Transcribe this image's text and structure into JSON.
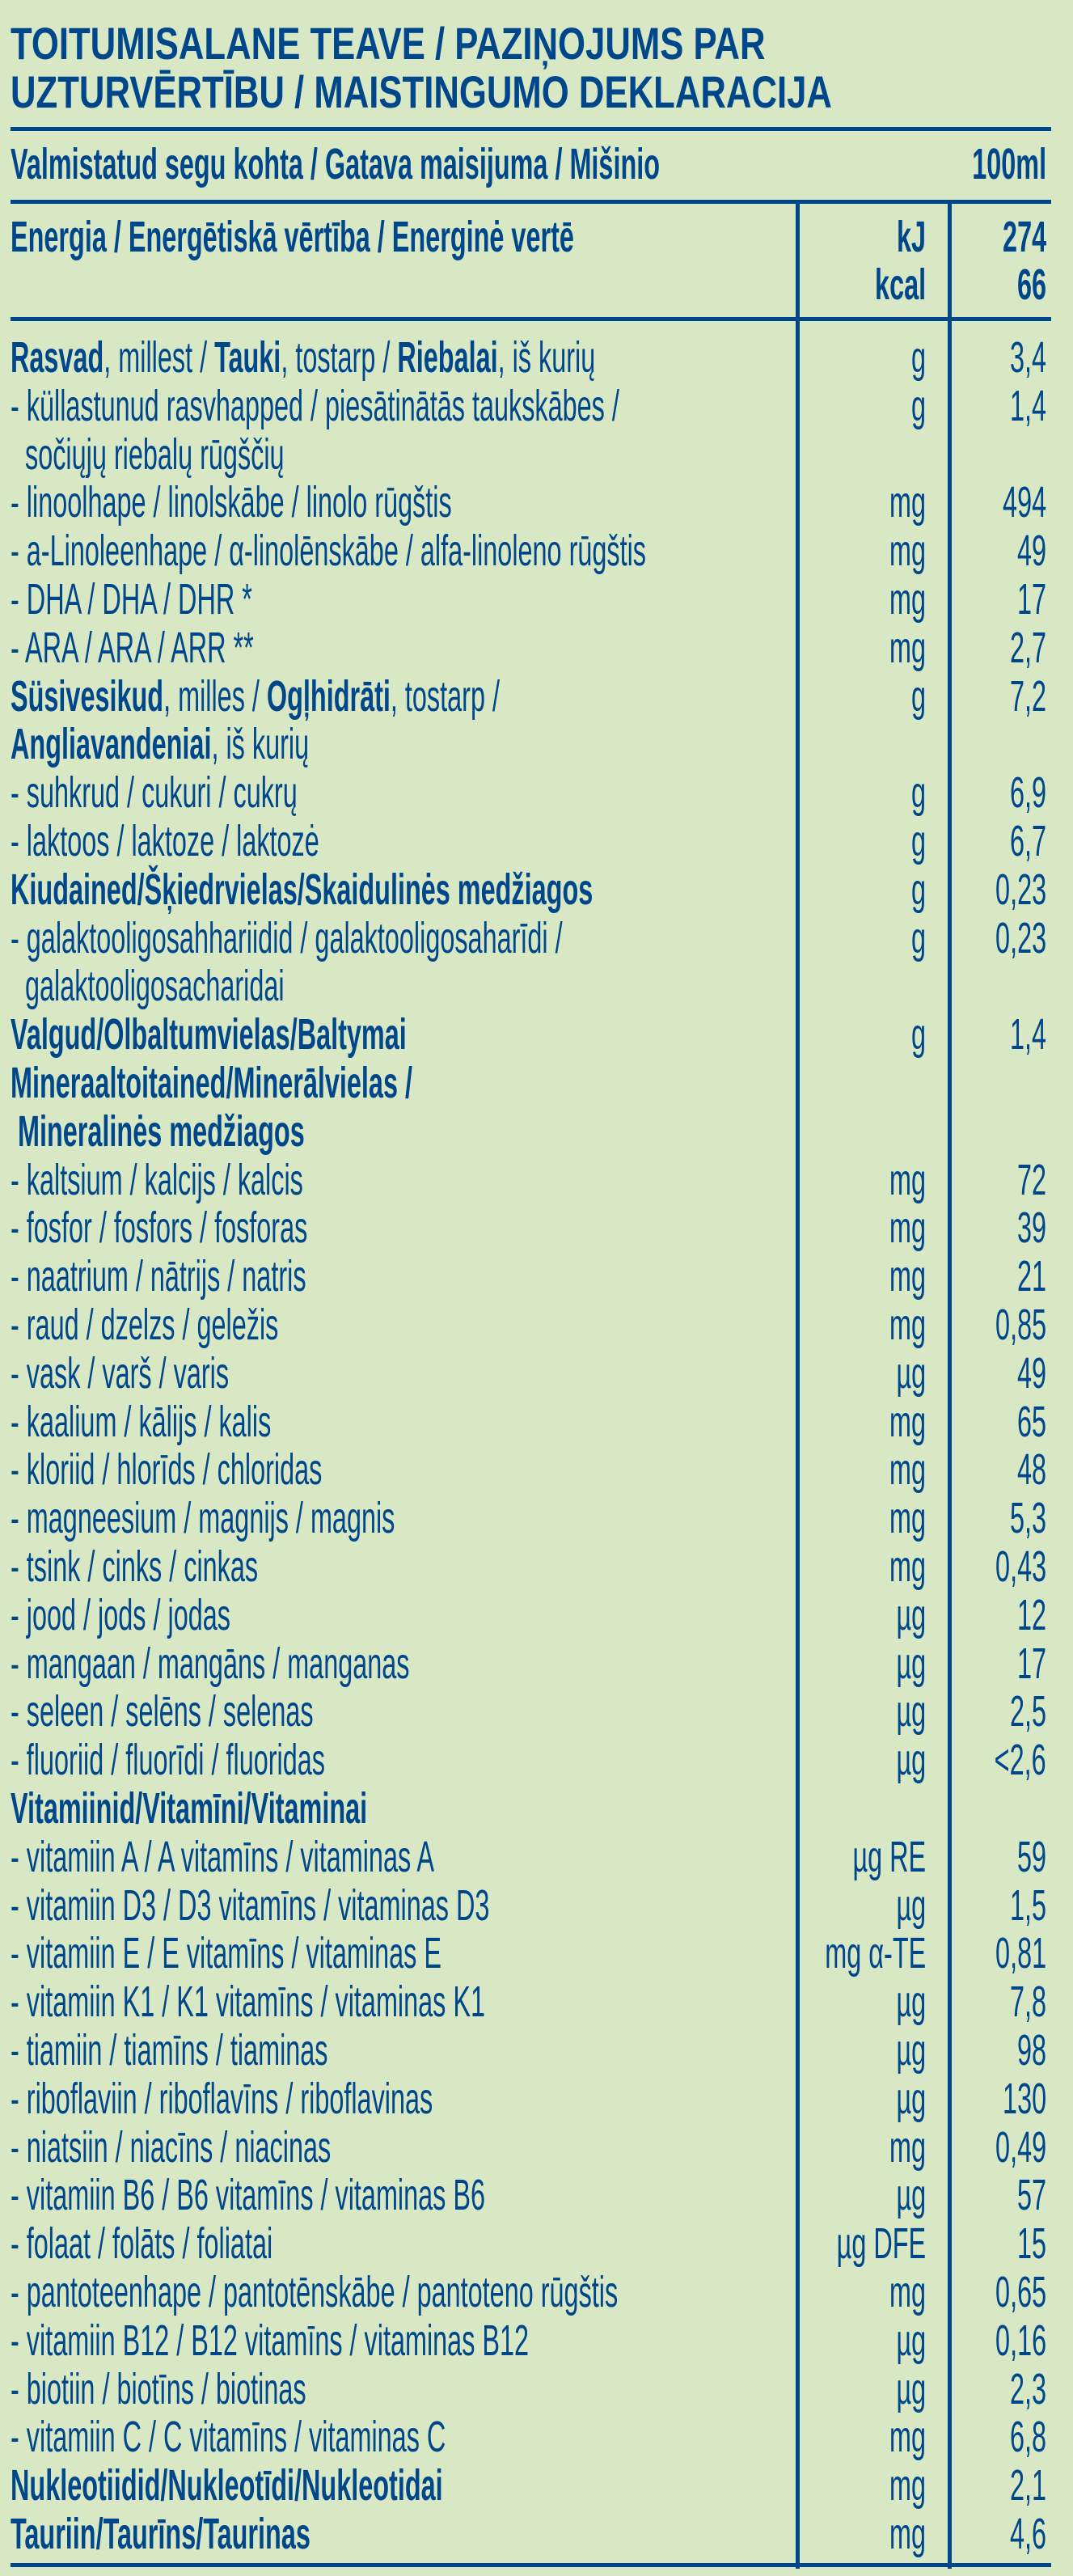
{
  "title": [
    "TOITUMISALANE TEAVE / PAZIŅOJUMS PAR",
    "UZTURVĒRTĪBU / MAISTINGUMO DEKLARACIJA"
  ],
  "serving": {
    "label": "Valmistatud segu kohta / Gatava maisijuma / Mišinio",
    "amount": "100ml"
  },
  "energy": {
    "label": "Energia / Energētiskā vērtība / Energinė vertē",
    "units": [
      "kJ",
      "kcal"
    ],
    "values": [
      "274",
      "66"
    ]
  },
  "colors": {
    "background": "#d8e8c4",
    "text": "#00468b"
  },
  "rows": [
    {
      "seg": [
        {
          "t": "Rasvad",
          "b": true
        },
        {
          "t": ", millest / "
        },
        {
          "t": "Tauki",
          "b": true
        },
        {
          "t": ", tostarp / "
        },
        {
          "t": "Riebalai",
          "b": true
        },
        {
          "t": ", iš kurių"
        }
      ],
      "unit": "g",
      "value": "3,4"
    },
    {
      "seg": [
        {
          "t": "- küllastunud rasvhapped / piesātinātās taukskābes /"
        }
      ],
      "unit": "g",
      "value": "1,4"
    },
    {
      "seg": [
        {
          "t": "  sočiųjų riebalų rūgščių"
        }
      ]
    },
    {
      "seg": [
        {
          "t": "- linoolhape / linolskābe / linolo rūgštis"
        }
      ],
      "unit": "mg",
      "value": "494"
    },
    {
      "seg": [
        {
          "t": "- a-Linoleenhape / α-linolēnskābe / alfa-linoleno rūgštis"
        }
      ],
      "unit": "mg",
      "value": "49"
    },
    {
      "seg": [
        {
          "t": "- DHA / DHA / DHR *"
        }
      ],
      "unit": "mg",
      "value": "17"
    },
    {
      "seg": [
        {
          "t": "- ARA / ARA / ARR **"
        }
      ],
      "unit": "mg",
      "value": "2,7"
    },
    {
      "seg": [
        {
          "t": "Süsivesikud",
          "b": true
        },
        {
          "t": ", milles / "
        },
        {
          "t": "Ogļhidrāti",
          "b": true
        },
        {
          "t": ", tostarp /"
        }
      ],
      "unit": "g",
      "value": "7,2"
    },
    {
      "seg": [
        {
          "t": "Angliavandeniai",
          "b": true
        },
        {
          "t": ", iš kurių"
        }
      ]
    },
    {
      "seg": [
        {
          "t": "- suhkrud / cukuri / cukrų"
        }
      ],
      "unit": "g",
      "value": "6,9"
    },
    {
      "seg": [
        {
          "t": "- laktoos / laktoze / laktozė"
        }
      ],
      "unit": "g",
      "value": "6,7"
    },
    {
      "seg": [
        {
          "t": "Kiudained/Šķiedrvielas/Skaidulinės medžiagos",
          "b": true
        }
      ],
      "unit": "g",
      "value": "0,23"
    },
    {
      "seg": [
        {
          "t": "- galaktooligosahhariidid / galaktooligosaharīdi /"
        }
      ],
      "unit": "g",
      "value": "0,23"
    },
    {
      "seg": [
        {
          "t": "  galaktooligosacharidai"
        }
      ]
    },
    {
      "seg": [
        {
          "t": "Valgud/Olbaltumvielas/Baltymai",
          "b": true
        }
      ],
      "unit": "g",
      "value": "1,4"
    },
    {
      "seg": [
        {
          "t": "Mineraaltoitained/Minerālvielas /",
          "b": true
        }
      ]
    },
    {
      "seg": [
        {
          "t": " Mineralinės medžiagos",
          "b": true
        }
      ]
    },
    {
      "seg": [
        {
          "t": "- kaltsium / kalcijs / kalcis"
        }
      ],
      "unit": "mg",
      "value": "72"
    },
    {
      "seg": [
        {
          "t": "- fosfor / fosfors / fosforas"
        }
      ],
      "unit": "mg",
      "value": "39"
    },
    {
      "seg": [
        {
          "t": "- naatrium / nātrijs / natris"
        }
      ],
      "unit": "mg",
      "value": "21"
    },
    {
      "seg": [
        {
          "t": "- raud / dzelzs / geležis"
        }
      ],
      "unit": "mg",
      "value": "0,85"
    },
    {
      "seg": [
        {
          "t": "- vask / varš / varis"
        }
      ],
      "unit": "µg",
      "value": "49"
    },
    {
      "seg": [
        {
          "t": "- kaalium / kālijs / kalis"
        }
      ],
      "unit": "mg",
      "value": "65"
    },
    {
      "seg": [
        {
          "t": "- kloriid / hlorīds / chloridas"
        }
      ],
      "unit": "mg",
      "value": "48"
    },
    {
      "seg": [
        {
          "t": "- magneesium / magnijs / magnis"
        }
      ],
      "unit": "mg",
      "value": "5,3"
    },
    {
      "seg": [
        {
          "t": "- tsink / cinks / cinkas"
        }
      ],
      "unit": "mg",
      "value": "0,43"
    },
    {
      "seg": [
        {
          "t": "- jood / jods / jodas"
        }
      ],
      "unit": "µg",
      "value": "12"
    },
    {
      "seg": [
        {
          "t": "- mangaan / mangāns / manganas"
        }
      ],
      "unit": "µg",
      "value": "17"
    },
    {
      "seg": [
        {
          "t": "- seleen / selēns / selenas"
        }
      ],
      "unit": "µg",
      "value": "2,5"
    },
    {
      "seg": [
        {
          "t": "- fluoriid / fluorīdi / fluoridas"
        }
      ],
      "unit": "µg",
      "value": "<2,6"
    },
    {
      "seg": [
        {
          "t": "Vitamiinid/Vitamīni/Vitaminai",
          "b": true
        }
      ]
    },
    {
      "seg": [
        {
          "t": "- vitamiin A / A vitamīns / vitaminas A"
        }
      ],
      "unit": "µg RE",
      "value": "59"
    },
    {
      "seg": [
        {
          "t": "- vitamiin D3 / D3 vitamīns / vitaminas D3"
        }
      ],
      "unit": "µg",
      "value": "1,5"
    },
    {
      "seg": [
        {
          "t": "- vitamiin E / E vitamīns / vitaminas E"
        }
      ],
      "unit": "mg α-TE",
      "value": "0,81"
    },
    {
      "seg": [
        {
          "t": "- vitamiin K1 / K1 vitamīns / vitaminas K1"
        }
      ],
      "unit": "µg",
      "value": "7,8"
    },
    {
      "seg": [
        {
          "t": "- tiamiin / tiamīns / tiaminas"
        }
      ],
      "unit": "µg",
      "value": "98"
    },
    {
      "seg": [
        {
          "t": "- riboflaviin / riboflavīns / riboflavinas"
        }
      ],
      "unit": "µg",
      "value": "130"
    },
    {
      "seg": [
        {
          "t": "- niatsiin / niacīns / niacinas"
        }
      ],
      "unit": "mg",
      "value": "0,49"
    },
    {
      "seg": [
        {
          "t": "- vitamiin B6 / B6 vitamīns / vitaminas B6"
        }
      ],
      "unit": "µg",
      "value": "57"
    },
    {
      "seg": [
        {
          "t": "- folaat / folāts / foliatai"
        }
      ],
      "unit": "µg DFE",
      "value": "15"
    },
    {
      "seg": [
        {
          "t": "- pantoteenhape / pantotēnskābe / pantoteno rūgštis"
        }
      ],
      "unit": "mg",
      "value": "0,65"
    },
    {
      "seg": [
        {
          "t": "- vitamiin B12 / B12 vitamīns / vitaminas B12"
        }
      ],
      "unit": "µg",
      "value": "0,16"
    },
    {
      "seg": [
        {
          "t": "- biotiin / biotīns / biotinas"
        }
      ],
      "unit": "µg",
      "value": "2,3"
    },
    {
      "seg": [
        {
          "t": "- vitamiin C / C vitamīns / vitaminas C"
        }
      ],
      "unit": "mg",
      "value": "6,8"
    },
    {
      "seg": [
        {
          "t": "Nukleotiidid/Nukleotīdi/Nukleotidai",
          "b": true
        }
      ],
      "unit": "mg",
      "value": "2,1"
    },
    {
      "seg": [
        {
          "t": "Tauriin/Taurīns/Taurinas",
          "b": true
        }
      ],
      "unit": "mg",
      "value": "4,6"
    }
  ]
}
